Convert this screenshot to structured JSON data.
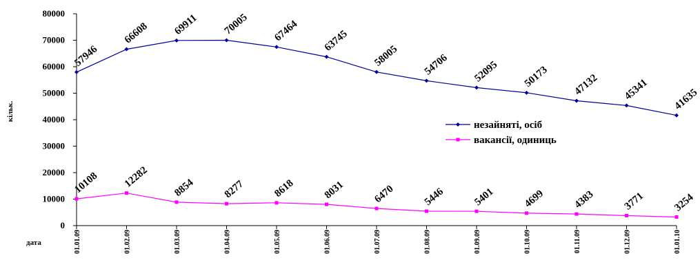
{
  "chart_data": {
    "type": "line",
    "ylabel": "кільк.",
    "xlabel": "дата",
    "ylim": [
      0,
      80000
    ],
    "yticks": [
      "0",
      "10000",
      "20000",
      "30000",
      "40000",
      "50000",
      "60000",
      "70000",
      "80000"
    ],
    "categories": [
      "01.01.09",
      "01.02.09",
      "01.03.09",
      "01.04.09",
      "01.05.09",
      "01.06.09",
      "01.07.09",
      "01.08.09",
      "01.09.09",
      "01.10.09",
      "01.11.09",
      "01.12.09",
      "01.01.10"
    ],
    "legend_position": "right",
    "grid": false,
    "series": [
      {
        "name": "незайняті, осіб",
        "color": "#000099",
        "values": [
          57946,
          66608,
          69911,
          70005,
          67464,
          63745,
          58005,
          54706,
          52095,
          50173,
          47132,
          45341,
          41635
        ],
        "labels": [
          "57946",
          "66608",
          "69911",
          "70005",
          "67464",
          "63745",
          "58005",
          "54706",
          "52095",
          "50173",
          "47132",
          "45341",
          "41635"
        ]
      },
      {
        "name": "вакансії, одиниць",
        "color": "#ff00ff",
        "values": [
          10108,
          12282,
          8854,
          8277,
          8618,
          8031,
          6470,
          5446,
          5401,
          4699,
          4383,
          3771,
          3254
        ],
        "labels": [
          "10108",
          "12282",
          "8854",
          "8277",
          "8618",
          "8031",
          "6470",
          "5446",
          "5401",
          "4699",
          "4383",
          "3771",
          "3254"
        ]
      }
    ]
  }
}
